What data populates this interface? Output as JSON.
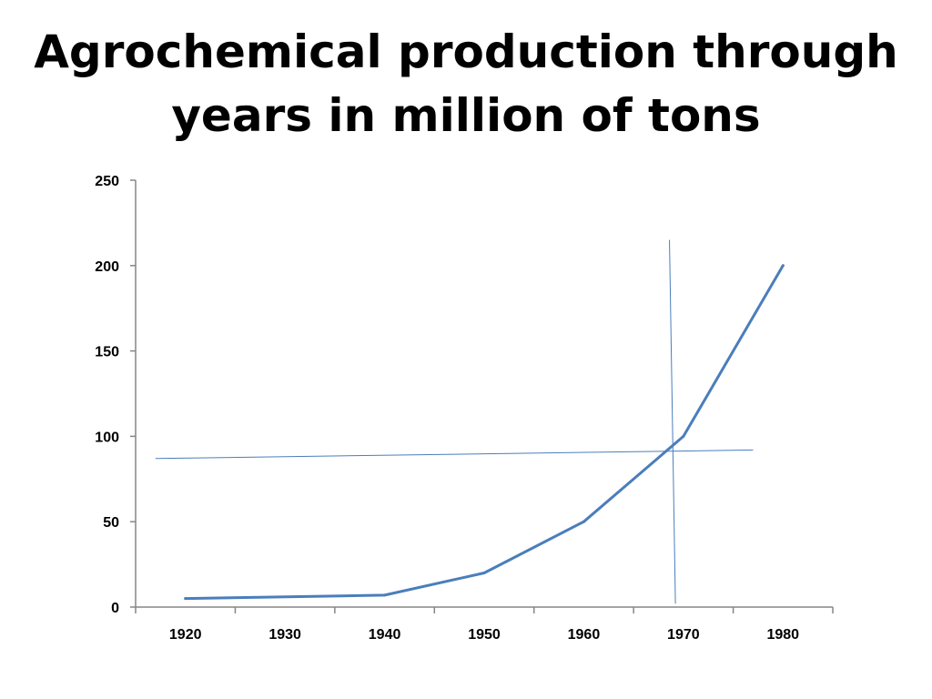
{
  "slide": {
    "title_lines": [
      "Agrochemical production through",
      "years in million of tons"
    ]
  },
  "chart_data": {
    "type": "line",
    "title": "Agrochemical production through years in million of tons",
    "xlabel": "",
    "ylabel": "",
    "categories": [
      "1920",
      "1930",
      "1940",
      "1950",
      "1960",
      "1970",
      "1980"
    ],
    "series": [
      {
        "points": [
          {
            "x": 1920,
            "y": 5
          },
          {
            "x": 1940,
            "y": 7
          },
          {
            "x": 1950,
            "y": 20
          },
          {
            "x": 1960,
            "y": 50
          },
          {
            "x": 1970,
            "y": 100
          },
          {
            "x": 1980,
            "y": 200
          }
        ],
        "color": "#4a7ebb"
      }
    ],
    "ylim": [
      0,
      250
    ],
    "yticks": [
      0,
      50,
      100,
      150,
      200,
      250
    ],
    "grid": false,
    "legend": "none",
    "annotations": {
      "reference_lines": [
        {
          "orientation": "horizontal",
          "from": {
            "x": 1917,
            "y": 87
          },
          "to": {
            "x": 1977,
            "y": 92
          },
          "color": "#4a7ebb"
        },
        {
          "orientation": "vertical",
          "from": {
            "x": 1968.6,
            "y": 215
          },
          "to": {
            "x": 1969.2,
            "y": 2
          },
          "color": "#4a7ebb"
        }
      ]
    }
  }
}
